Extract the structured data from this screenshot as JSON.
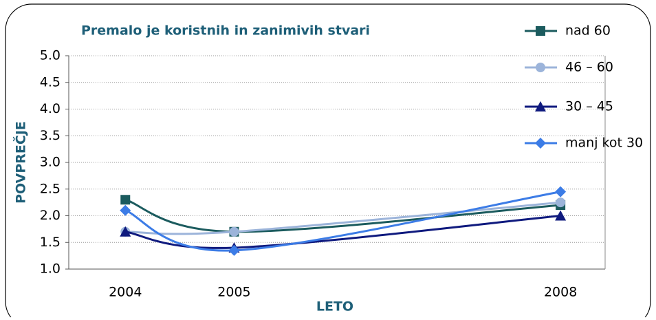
{
  "chart_data": {
    "type": "line",
    "title": "Premalo je koristnih in zanimivih stvari",
    "x_label": "LETO",
    "y_label": "POVPREČJE",
    "x": [
      2004,
      2005,
      2008
    ],
    "xlim": [
      2003.48,
      2008.41
    ],
    "xticks": [
      2004,
      2005,
      2008
    ],
    "ylim": [
      1,
      5
    ],
    "yticks": [
      {
        "value": 1,
        "label": "1.0"
      },
      1.5,
      {
        "value": 2,
        "label": "2.0"
      },
      2.5,
      {
        "value": 3,
        "label": "3.0"
      },
      3.5,
      {
        "value": 4,
        "label": "4.0"
      },
      4.5,
      {
        "value": 5,
        "label": "5.0"
      }
    ],
    "grid": true,
    "legend": "right",
    "series": [
      {
        "name": "nad 60",
        "color": "#1b5b5e",
        "marker": "square",
        "values": [
          2.3,
          1.7,
          2.2
        ]
      },
      {
        "name": "46 – 60",
        "color": "#9cb4da",
        "marker": "circle",
        "values": [
          1.7,
          1.7,
          2.25
        ]
      },
      {
        "name": "30 – 45",
        "color": "#0f1a7e",
        "marker": "triangle",
        "values": [
          1.7,
          1.4,
          2.0
        ]
      },
      {
        "name": "manj kot 30",
        "color": "#3c7ce6",
        "marker": "diamond",
        "values": [
          2.1,
          1.35,
          2.45
        ]
      }
    ]
  }
}
